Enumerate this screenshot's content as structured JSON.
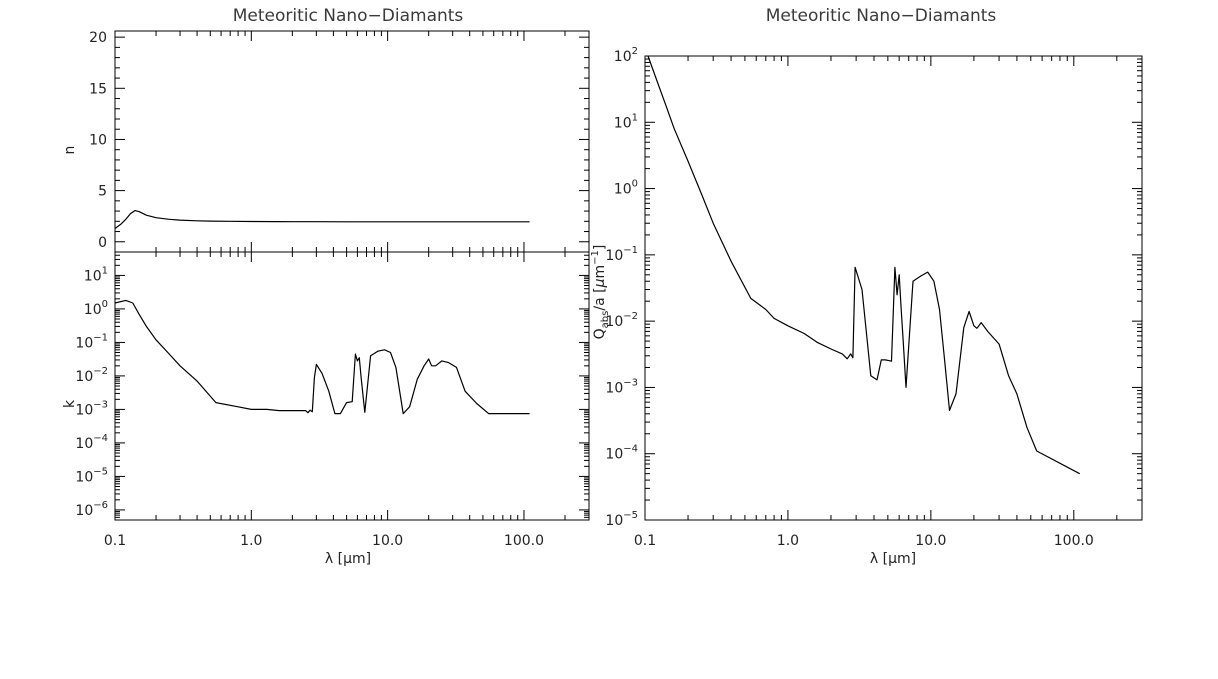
{
  "chart_data": [
    {
      "type": "line",
      "panel": "n",
      "title": "Meteoritic Nano−Diamants",
      "xlabel": "",
      "ylabel": "n",
      "xscale": "log",
      "yscale": "linear",
      "xlim": [
        0.1,
        300
      ],
      "ylim": [
        -1,
        20.6
      ],
      "xtick_values": [
        0.1,
        1,
        10,
        100
      ],
      "ytick_values": [
        0,
        5,
        10,
        15,
        20
      ],
      "ytick_labels": [
        "0",
        "5",
        "10",
        "15",
        "20"
      ],
      "grid": false,
      "color": "#000000",
      "x": [
        0.1,
        0.11,
        0.12,
        0.13,
        0.14,
        0.15,
        0.17,
        0.2,
        0.25,
        0.3,
        0.4,
        0.5,
        0.7,
        1.0,
        1.5,
        2,
        3,
        5,
        10,
        20,
        50,
        110
      ],
      "y": [
        1.3,
        1.7,
        2.2,
        2.75,
        3.05,
        2.95,
        2.6,
        2.35,
        2.2,
        2.12,
        2.05,
        2.02,
        2.0,
        1.98,
        1.97,
        1.96,
        1.96,
        1.95,
        1.95,
        1.95,
        1.95,
        1.95
      ]
    },
    {
      "type": "line",
      "panel": "k",
      "xlabel": "λ [μm]",
      "ylabel": "k",
      "xscale": "log",
      "yscale": "log",
      "xlim": [
        0.1,
        300
      ],
      "ylim": [
        5e-07,
        50
      ],
      "xtick_values": [
        0.1,
        1,
        10,
        100
      ],
      "xtick_labels": [
        "0.1",
        "1.0",
        "10.0",
        "100.0"
      ],
      "ytick_values": [
        10,
        1,
        0.1,
        0.01,
        0.001,
        0.0001,
        1e-05,
        1e-06
      ],
      "ytick_mantissa": [
        "10",
        "10",
        "10",
        "10",
        "10",
        "10",
        "10",
        "10"
      ],
      "ytick_exponents": [
        "1",
        "0",
        "−1",
        "−2",
        "−3",
        "−4",
        "−5",
        "−6"
      ],
      "grid": false,
      "color": "#000000",
      "x": [
        0.1,
        0.12,
        0.135,
        0.15,
        0.17,
        0.2,
        0.25,
        0.3,
        0.4,
        0.55,
        0.8,
        1.0,
        1.3,
        1.6,
        2.0,
        2.5,
        2.6,
        2.7,
        2.8,
        2.9,
        3.0,
        3.3,
        3.7,
        4.1,
        4.5,
        5.0,
        5.5,
        5.8,
        6.0,
        6.2,
        6.4,
        6.8,
        7.5,
        8.5,
        9.5,
        10.5,
        11.5,
        13.0,
        14.5,
        16.5,
        18.5,
        20.0,
        21.0,
        22.5,
        25.0,
        28.0,
        32.0,
        37.0,
        45.0,
        55.0,
        110.0
      ],
      "y": [
        1.5,
        1.8,
        1.5,
        0.7,
        0.3,
        0.12,
        0.045,
        0.02,
        0.007,
        0.0016,
        0.0012,
        0.001,
        0.001,
        0.00092,
        0.00092,
        0.00092,
        0.0008,
        0.00095,
        0.00085,
        0.009,
        0.022,
        0.012,
        0.0035,
        0.00075,
        0.00075,
        0.0016,
        0.0017,
        0.045,
        0.028,
        0.035,
        0.0085,
        0.00082,
        0.04,
        0.055,
        0.06,
        0.05,
        0.018,
        0.00075,
        0.0012,
        0.008,
        0.02,
        0.032,
        0.02,
        0.02,
        0.028,
        0.025,
        0.018,
        0.0035,
        0.0015,
        0.00075,
        0.00075
      ]
    },
    {
      "type": "line",
      "panel": "qabs",
      "title": "Meteoritic Nano−Diamants",
      "xlabel": "λ [μm]",
      "ylabel": "Qabs/a [μm−1]",
      "xscale": "log",
      "yscale": "log",
      "xlim": [
        0.1,
        300
      ],
      "ylim": [
        1e-05,
        100
      ],
      "xtick_values": [
        0.1,
        1,
        10,
        100
      ],
      "xtick_labels": [
        "0.1",
        "1.0",
        "10.0",
        "100.0"
      ],
      "ytick_values": [
        100,
        10,
        1,
        0.1,
        0.01,
        0.001,
        0.0001,
        1e-05
      ],
      "ytick_mantissa": [
        "10",
        "10",
        "10",
        "10",
        "10",
        "10",
        "10",
        "10"
      ],
      "ytick_exponents": [
        "2",
        "1",
        "0",
        "−1",
        "−2",
        "−3",
        "−4",
        "−5"
      ],
      "grid": false,
      "color": "#000000",
      "x": [
        0.105,
        0.12,
        0.14,
        0.16,
        0.2,
        0.25,
        0.3,
        0.4,
        0.55,
        0.7,
        0.8,
        1.0,
        1.3,
        1.6,
        2.0,
        2.4,
        2.6,
        2.75,
        2.85,
        2.95,
        3.3,
        3.8,
        4.2,
        4.5,
        4.8,
        5.3,
        5.6,
        5.8,
        6.0,
        6.2,
        6.4,
        6.7,
        7.5,
        8.5,
        9.5,
        10.5,
        11.5,
        12.5,
        13.5,
        15.0,
        17.0,
        18.5,
        20.0,
        21.0,
        22.5,
        25.0,
        30.0,
        35.0,
        40.0,
        47.0,
        55.0,
        110.0
      ],
      "y": [
        100,
        45,
        18,
        8,
        2.6,
        0.8,
        0.3,
        0.08,
        0.022,
        0.015,
        0.011,
        0.0085,
        0.0065,
        0.0048,
        0.0038,
        0.0032,
        0.0027,
        0.0032,
        0.0028,
        0.065,
        0.03,
        0.0015,
        0.0013,
        0.0026,
        0.0026,
        0.0025,
        0.065,
        0.025,
        0.05,
        0.015,
        0.005,
        0.001,
        0.04,
        0.048,
        0.055,
        0.04,
        0.015,
        0.0025,
        0.00045,
        0.0008,
        0.008,
        0.014,
        0.0085,
        0.0078,
        0.0095,
        0.007,
        0.0045,
        0.0015,
        0.0008,
        0.00025,
        0.00011,
        5e-05
      ]
    }
  ]
}
